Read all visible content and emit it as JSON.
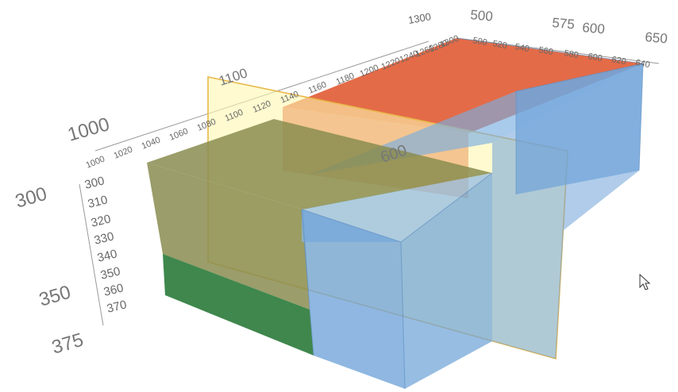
{
  "colors": {
    "red_box": "#e0572f",
    "blue_box": "#6fa3d8",
    "green_box": "#2f7d3e",
    "olive_box": "#8a8c50",
    "yellow_plane": "#fff6b0",
    "yellow_plane_border": "#e8b84a",
    "axis": "#9a9a9a",
    "tick_text": "#666666"
  },
  "axes": {
    "x": {
      "small_ticks": [
        "1000",
        "1020",
        "1040",
        "1060",
        "1080",
        "1100",
        "1120",
        "1140",
        "1160",
        "1180",
        "1200",
        "1220",
        "1240",
        "1260",
        "1280",
        "1300"
      ],
      "major_labels": [
        "1000",
        "1100",
        "1300"
      ]
    },
    "z": {
      "small_ticks": [
        "500",
        "520",
        "540",
        "560",
        "580",
        "600",
        "620",
        "640"
      ],
      "major_labels": [
        "500",
        "575",
        "600",
        "650"
      ]
    },
    "y": {
      "small_ticks": [
        "300",
        "310",
        "320",
        "330",
        "340",
        "350",
        "360",
        "370"
      ],
      "major_labels": [
        "300",
        "350",
        "375"
      ]
    },
    "plane_label": "600"
  },
  "icons": {
    "cursor": "mouse-pointer-icon"
  }
}
